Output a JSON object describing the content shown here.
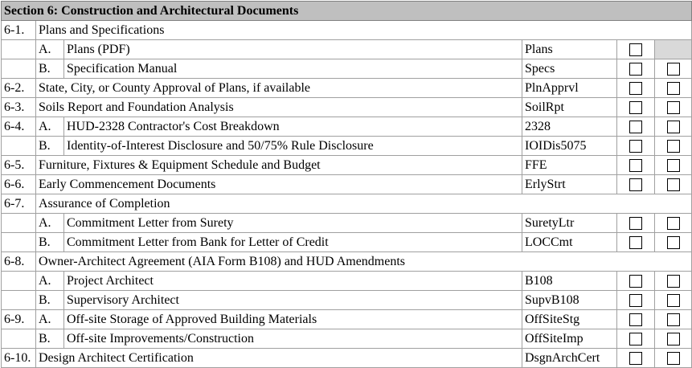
{
  "section_title": "Section 6: Construction and Architectural Documents",
  "rows": [
    {
      "number": "6-1.",
      "text": "Plans and Specifications"
    },
    {
      "letter": "A.",
      "text": "Plans (PDF)",
      "code": "Plans",
      "checkboxes": 1
    },
    {
      "letter": "B.",
      "text": "Specification Manual",
      "code": "Specs",
      "checkboxes": 2
    },
    {
      "number": "6-2.",
      "text": "State, City, or County Approval of Plans, if available",
      "code": "PlnApprvl",
      "checkboxes": 2
    },
    {
      "number": "6-3.",
      "text": "Soils Report and Foundation Analysis",
      "code": "SoilRpt",
      "checkboxes": 2
    },
    {
      "number": "6-4.",
      "letter": "A.",
      "text": "HUD-2328 Contractor's Cost Breakdown",
      "code": "2328",
      "checkboxes": 2
    },
    {
      "letter": "B.",
      "text": "Identity-of-Interest Disclosure and 50/75% Rule Disclosure",
      "code": "IOIDis5075",
      "checkboxes": 2
    },
    {
      "number": "6-5.",
      "text": "Furniture, Fixtures & Equipment Schedule and Budget",
      "code": "FFE",
      "checkboxes": 2
    },
    {
      "number": "6-6.",
      "text": "Early Commencement Documents",
      "code": "ErlyStrt",
      "checkboxes": 2
    },
    {
      "number": "6-7.",
      "text": "Assurance of Completion"
    },
    {
      "letter": "A.",
      "text": "Commitment Letter from Surety",
      "code": "SuretyLtr",
      "checkboxes": 2
    },
    {
      "letter": "B.",
      "text": "Commitment Letter from Bank for Letter of Credit",
      "code": "LOCCmt",
      "checkboxes": 2
    },
    {
      "number": "6-8.",
      "text": "Owner-Architect Agreement (AIA Form B108) and HUD Amendments"
    },
    {
      "letter": "A.",
      "text": "Project Architect",
      "code": "B108",
      "checkboxes": 2
    },
    {
      "letter": "B.",
      "text": "Supervisory Architect",
      "code": "SupvB108",
      "checkboxes": 2
    },
    {
      "number": "6-9.",
      "letter": "A.",
      "text": "Off-site Storage of Approved Building Materials",
      "code": "OffSiteStg",
      "checkboxes": 2
    },
    {
      "letter": "B.",
      "text": "Off-site Improvements/Construction",
      "code": "OffSiteImp",
      "checkboxes": 2
    },
    {
      "number": "6-10.",
      "text": "Design Architect Certification",
      "code": "DsgnArchCert",
      "checkboxes": 2
    }
  ]
}
